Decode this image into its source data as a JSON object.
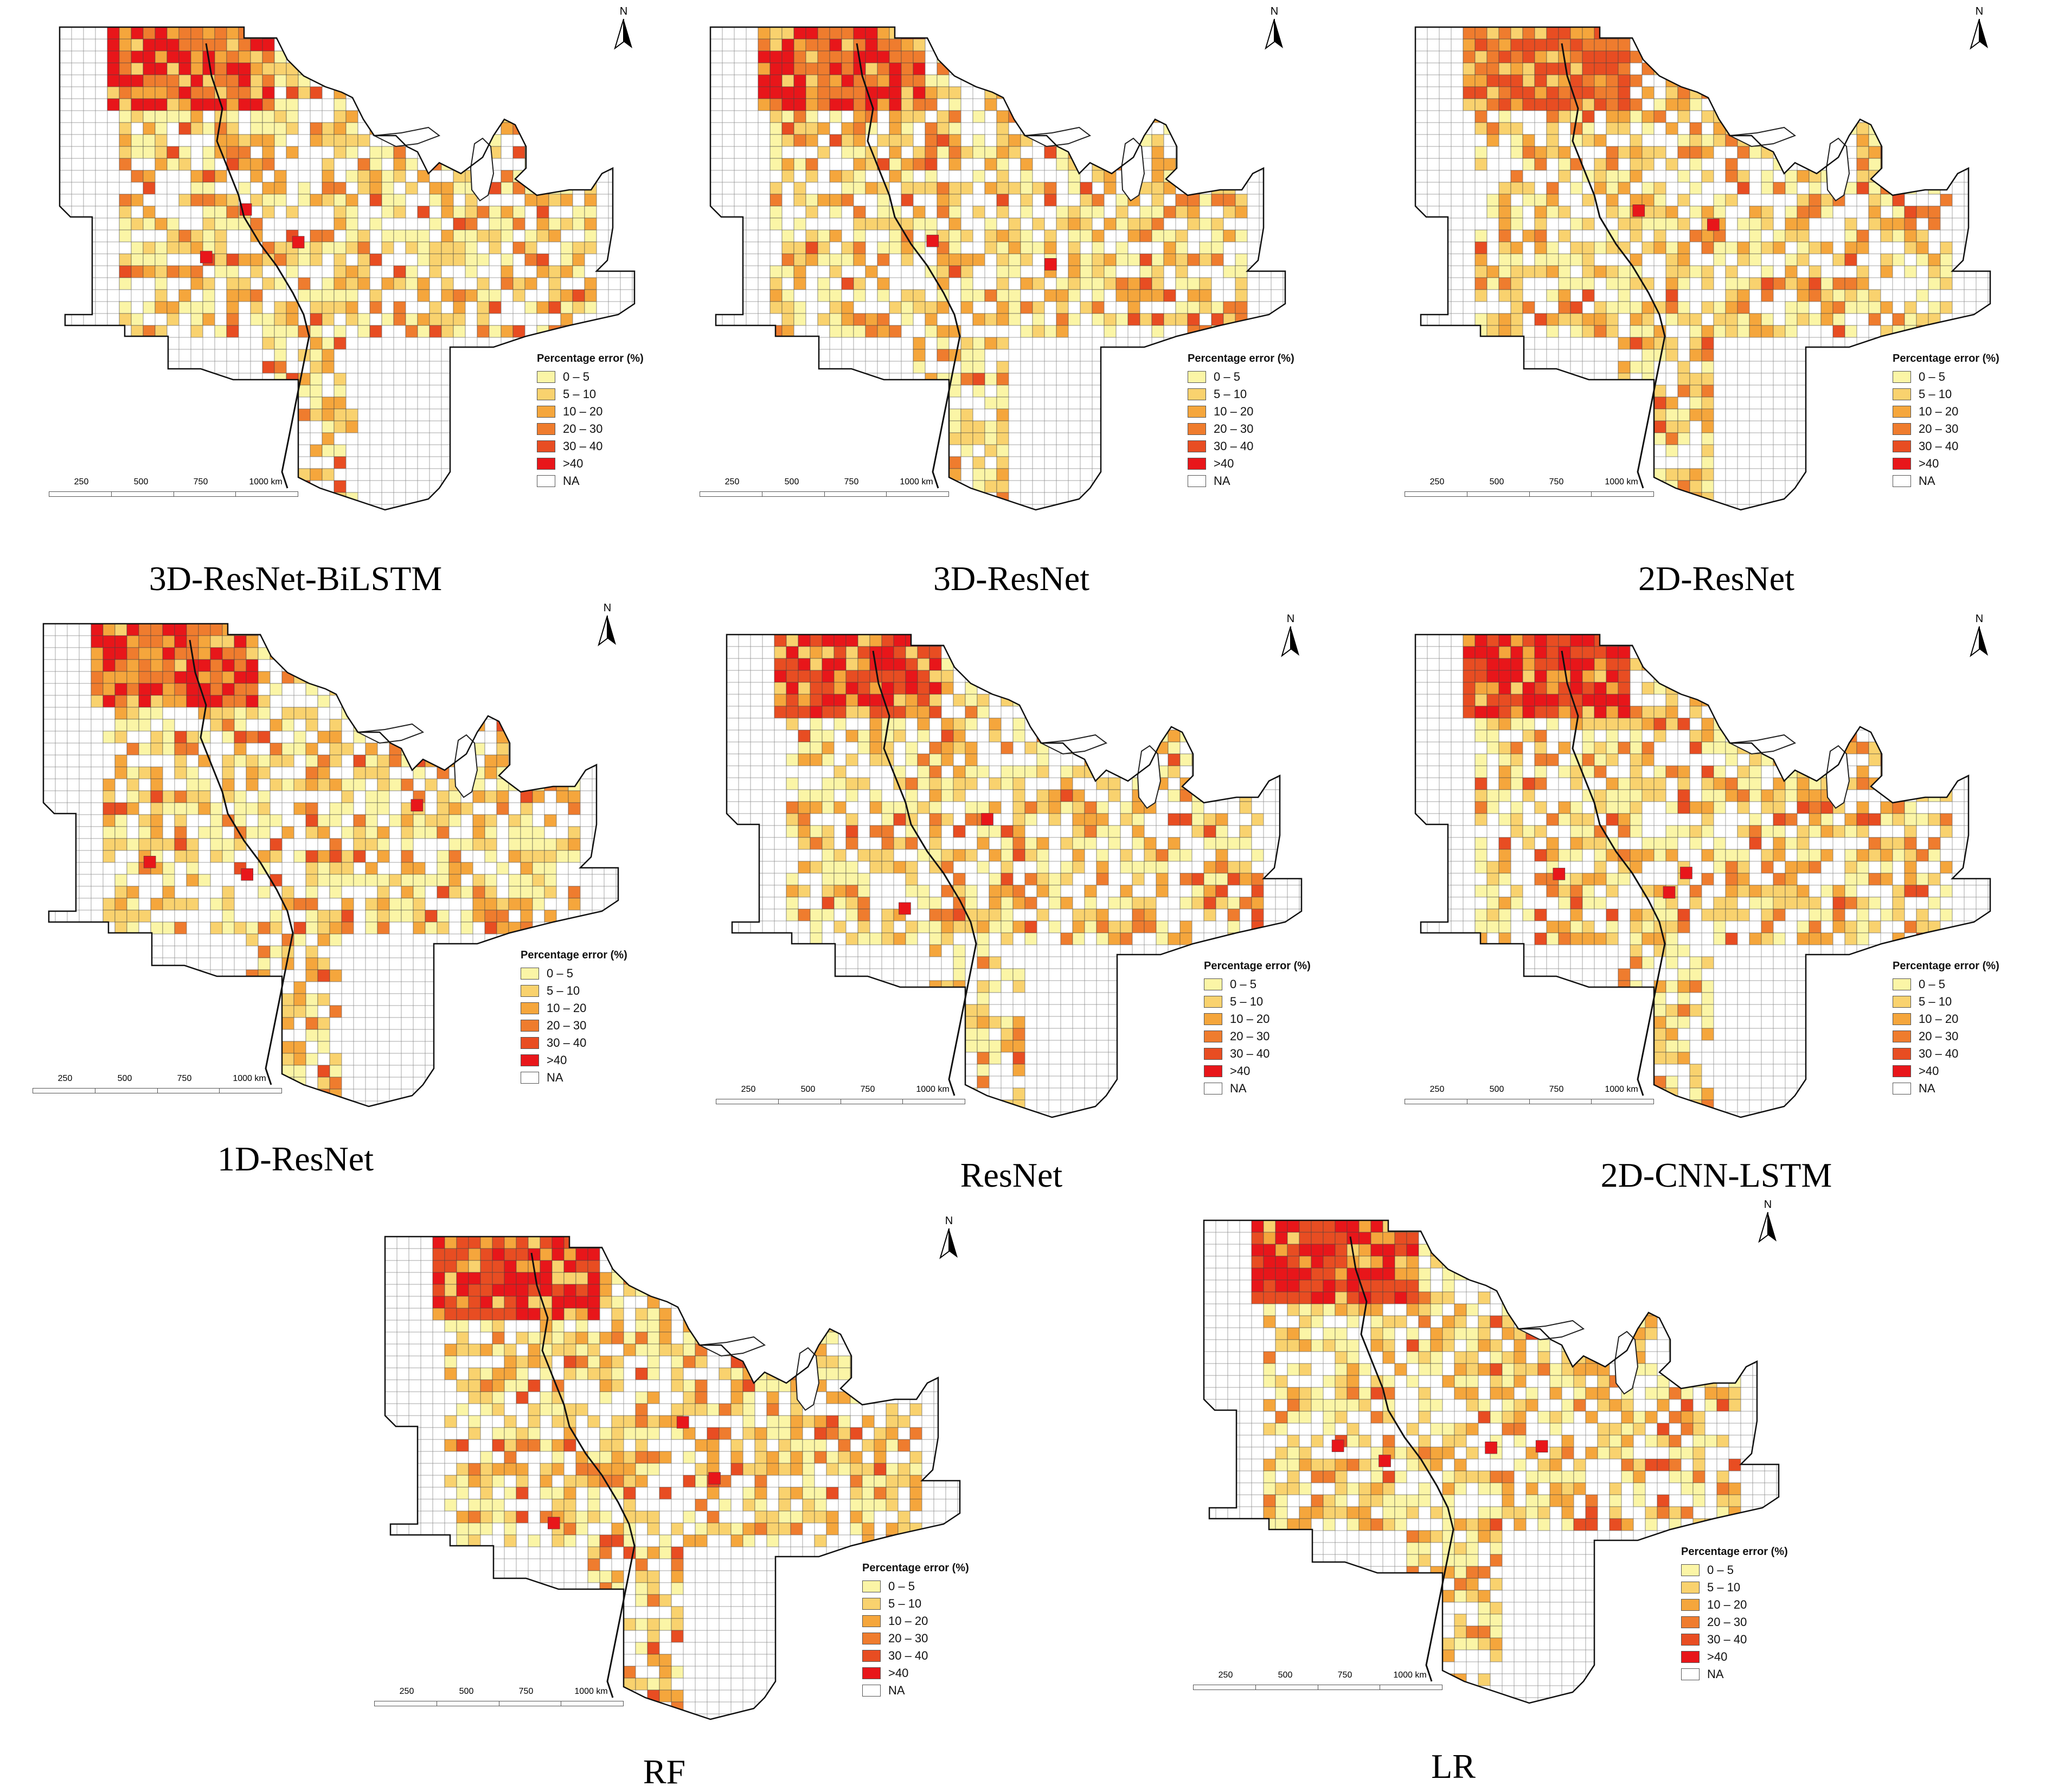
{
  "legend": {
    "title": "Percentage error (%)",
    "classes": [
      {
        "label": "0 – 5",
        "color": "#fbf5a6"
      },
      {
        "label": "5 – 10",
        "color": "#f9d26e"
      },
      {
        "label": "10 – 20",
        "color": "#f5a63c"
      },
      {
        "label": "20 – 30",
        "color": "#ef7c2e"
      },
      {
        "label": "30 – 40",
        "color": "#e84d22"
      },
      {
        "label": ">40",
        "color": "#e8161a"
      },
      {
        "label": "NA",
        "color": "#ffffff"
      }
    ]
  },
  "north_arrow": {
    "label": "N",
    "icon": "north-arrow-icon"
  },
  "scale_bar": {
    "ticks": [
      "250",
      "500",
      "750",
      "1000 km"
    ]
  },
  "panels": [
    {
      "model": "3D-ResNet-BiLSTM",
      "north_error": 4,
      "spots": 3
    },
    {
      "model": "3D-ResNet",
      "north_error": 4,
      "spots": 2
    },
    {
      "model": "2D-ResNet",
      "north_error": 3,
      "spots": 2
    },
    {
      "model": "1D-ResNet",
      "north_error": 4,
      "spots": 3
    },
    {
      "model": "ResNet",
      "north_error": 5,
      "spots": 2
    },
    {
      "model": "2D-CNN-LSTM",
      "north_error": 5,
      "spots": 3
    },
    {
      "model": "RF",
      "north_error": 5,
      "spots": 3
    },
    {
      "model": "LR",
      "north_error": 5,
      "spots": 4
    }
  ]
}
